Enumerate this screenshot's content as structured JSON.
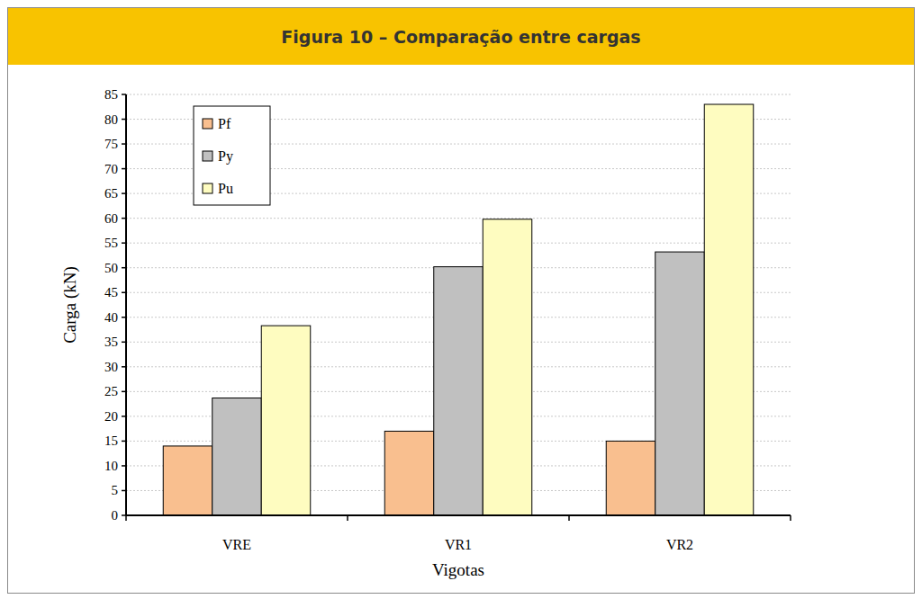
{
  "chart_data": {
    "type": "bar",
    "title": "Figura 10 – Comparação entre cargas",
    "categories": [
      "VRE",
      "VR1",
      "VR2"
    ],
    "series": [
      {
        "name": "Pf",
        "color": "#f9bf8f",
        "values": [
          14,
          17,
          15
        ]
      },
      {
        "name": "Py",
        "color": "#c0c0c0",
        "values": [
          23.7,
          50.2,
          53.2
        ]
      },
      {
        "name": "Pu",
        "color": "#fefcc0",
        "values": [
          38.3,
          59.8,
          83
        ]
      }
    ],
    "x_label": "Vigotas",
    "y_label": "Carga (kN)",
    "ylim": [
      0,
      85
    ],
    "yticks": [
      0,
      5,
      10,
      15,
      20,
      25,
      30,
      35,
      40,
      45,
      50,
      55,
      60,
      65,
      70,
      75,
      80,
      85
    ],
    "grid": true,
    "legend": "upper left"
  }
}
